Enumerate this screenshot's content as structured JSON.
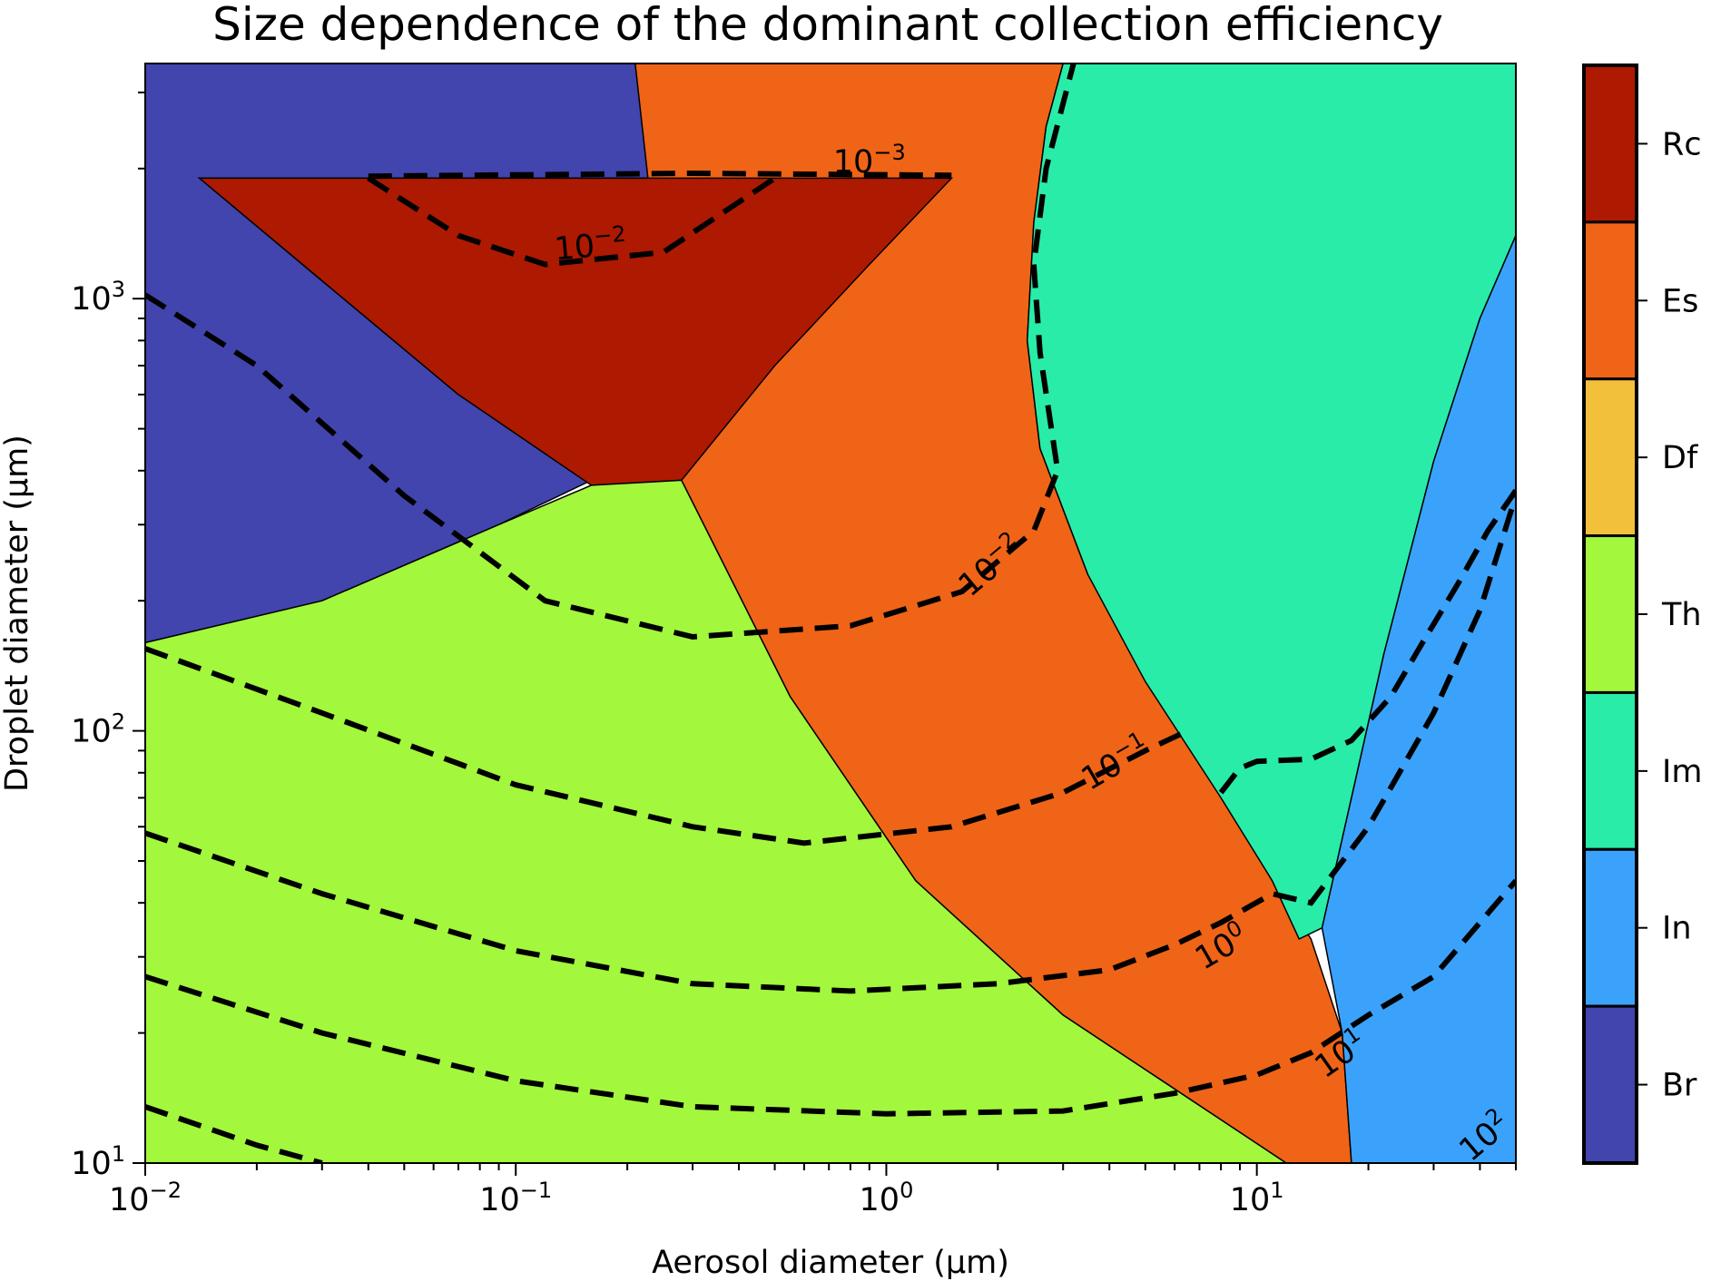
{
  "chart_data": {
    "type": "heatmap",
    "title": "Size dependence of the dominant collection efficiency",
    "xlabel": "Aerosol diameter (μm)",
    "ylabel": "Droplet diameter (μm)",
    "xscale": "log",
    "yscale": "log",
    "xlim": [
      0.01,
      50
    ],
    "ylim": [
      10,
      3500
    ],
    "x_ticks": [
      {
        "value": 0.01,
        "base": "10",
        "exp": "−2"
      },
      {
        "value": 0.1,
        "base": "10",
        "exp": "−1"
      },
      {
        "value": 1,
        "base": "10",
        "exp": "0"
      },
      {
        "value": 10,
        "base": "10",
        "exp": "1"
      }
    ],
    "y_ticks": [
      {
        "value": 10,
        "base": "10",
        "exp": "1"
      },
      {
        "value": 100,
        "base": "10",
        "exp": "2"
      },
      {
        "value": 1000,
        "base": "10",
        "exp": "3"
      }
    ],
    "grid": false,
    "colorbar": {
      "position": "right",
      "categories": [
        {
          "label": "Rc",
          "color": "#ae1901"
        },
        {
          "label": "Es",
          "color": "#f06417"
        },
        {
          "label": "Df",
          "color": "#f2c03a"
        },
        {
          "label": "Th",
          "color": "#a3f73c"
        },
        {
          "label": "Im",
          "color": "#29eca9"
        },
        {
          "label": "In",
          "color": "#3ba2fc"
        },
        {
          "label": "Br",
          "color": "#4145ad"
        }
      ]
    },
    "regions": [
      {
        "mechanism": "Br",
        "color": "#4145ad",
        "boundary": [
          [
            0.01,
            3500
          ],
          [
            0.21,
            3500
          ],
          [
            0.23,
            2500
          ],
          [
            0.25,
            1900
          ],
          [
            0.014,
            1900
          ],
          [
            0.03,
            1100
          ],
          [
            0.07,
            600
          ],
          [
            0.16,
            380
          ],
          [
            0.09,
            300
          ],
          [
            0.03,
            200
          ],
          [
            0.01,
            160
          ]
        ]
      },
      {
        "mechanism": "Es",
        "color": "#f06417",
        "boundary": [
          [
            0.21,
            3500
          ],
          [
            3.0,
            3500
          ],
          [
            2.7,
            2500
          ],
          [
            2.5,
            1500
          ],
          [
            2.4,
            800
          ],
          [
            2.6,
            450
          ],
          [
            3.5,
            230
          ],
          [
            6,
            120
          ],
          [
            9,
            65
          ],
          [
            11,
            45
          ],
          [
            14,
            33
          ],
          [
            17,
            20
          ],
          [
            18,
            10
          ],
          [
            12,
            10
          ],
          [
            3,
            22
          ],
          [
            1.2,
            45
          ],
          [
            0.55,
            120
          ],
          [
            0.28,
            380
          ]
        ]
      },
      {
        "mechanism": "Rc",
        "color": "#ae1901",
        "boundary": [
          [
            0.014,
            1900
          ],
          [
            1.5,
            1900
          ],
          [
            0.9,
            1200
          ],
          [
            0.5,
            700
          ],
          [
            0.28,
            380
          ],
          [
            0.16,
            370
          ],
          [
            0.07,
            600
          ],
          [
            0.03,
            1100
          ]
        ]
      },
      {
        "mechanism": "Th",
        "color": "#a3f73c",
        "boundary": [
          [
            0.01,
            160
          ],
          [
            0.03,
            200
          ],
          [
            0.09,
            300
          ],
          [
            0.16,
            370
          ],
          [
            0.28,
            380
          ],
          [
            0.55,
            120
          ],
          [
            1.2,
            45
          ],
          [
            3,
            22
          ],
          [
            12,
            10
          ],
          [
            0.01,
            10
          ]
        ]
      },
      {
        "mechanism": "Im",
        "color": "#29eca9",
        "boundary": [
          [
            3.6,
            3500
          ],
          [
            50,
            3500
          ],
          [
            50,
            1400
          ],
          [
            40,
            900
          ],
          [
            30,
            420
          ],
          [
            22,
            150
          ],
          [
            18,
            70
          ],
          [
            15,
            35
          ],
          [
            13,
            33
          ],
          [
            11,
            45
          ],
          [
            8,
            70
          ],
          [
            5,
            130
          ],
          [
            3.5,
            230
          ],
          [
            2.6,
            450
          ],
          [
            2.4,
            800
          ],
          [
            2.5,
            1500
          ],
          [
            2.7,
            2500
          ],
          [
            3.0,
            3500
          ]
        ]
      },
      {
        "mechanism": "In",
        "color": "#3ba2fc",
        "boundary": [
          [
            50,
            1400
          ],
          [
            50,
            10
          ],
          [
            18,
            10
          ],
          [
            17,
            20
          ],
          [
            15,
            35
          ],
          [
            18,
            70
          ],
          [
            22,
            150
          ],
          [
            30,
            420
          ],
          [
            40,
            900
          ]
        ]
      }
    ],
    "contours": [
      {
        "level": "10^-3",
        "label_base": "10",
        "label_exp": "−3",
        "label_at": [
          0.9,
          1960
        ],
        "label_angle": 0,
        "points": [
          [
            0.04,
            1920
          ],
          [
            0.3,
            1950
          ],
          [
            1.5,
            1930
          ]
        ]
      },
      {
        "level": "10^-2",
        "label_base": "10",
        "label_exp": "−2",
        "label_at": [
          0.16,
          1250
        ],
        "label_angle": -5,
        "points": [
          [
            0.04,
            1900
          ],
          [
            0.07,
            1400
          ],
          [
            0.12,
            1200
          ],
          [
            0.25,
            1280
          ],
          [
            0.5,
            1900
          ]
        ]
      },
      {
        "level": "10^-2",
        "label_base": "10",
        "label_exp": "−2",
        "label_at": [
          2.0,
          230
        ],
        "label_angle": -40,
        "points": [
          [
            0.01,
            1020
          ],
          [
            0.02,
            700
          ],
          [
            0.05,
            350
          ],
          [
            0.12,
            200
          ],
          [
            0.3,
            165
          ],
          [
            0.8,
            175
          ],
          [
            1.6,
            210
          ],
          [
            2.5,
            290
          ],
          [
            2.9,
            400
          ],
          [
            2.6,
            750
          ],
          [
            2.5,
            1200
          ],
          [
            2.7,
            2000
          ],
          [
            3.2,
            3500
          ]
        ]
      },
      {
        "level": "10^-1",
        "label_base": "10",
        "label_exp": "−1",
        "label_at": [
          4.3,
          80
        ],
        "label_angle": -30,
        "points": [
          [
            0.01,
            155
          ],
          [
            0.03,
            110
          ],
          [
            0.1,
            75
          ],
          [
            0.3,
            60
          ],
          [
            0.6,
            55
          ],
          [
            1.5,
            60
          ],
          [
            3,
            72
          ],
          [
            5,
            90
          ],
          [
            6.5,
            100
          ]
        ]
      },
      {
        "level": "10^0",
        "label_base": "10",
        "label_exp": "0",
        "label_at": [
          8.3,
          30
        ],
        "label_angle": -30,
        "points": [
          [
            0.01,
            58
          ],
          [
            0.03,
            42
          ],
          [
            0.1,
            31
          ],
          [
            0.3,
            26
          ],
          [
            0.8,
            25
          ],
          [
            2,
            26
          ],
          [
            4,
            28
          ],
          [
            6,
            32
          ],
          [
            8,
            36
          ],
          [
            11,
            42
          ],
          [
            14,
            40
          ],
          [
            20,
            60
          ],
          [
            30,
            110
          ],
          [
            40,
            190
          ],
          [
            50,
            350
          ]
        ]
      },
      {
        "level": "10^1",
        "label_base": "10",
        "label_exp": "1",
        "label_at": [
          17.5,
          17
        ],
        "label_angle": -35,
        "points": [
          [
            0.01,
            27
          ],
          [
            0.03,
            20
          ],
          [
            0.1,
            15.5
          ],
          [
            0.3,
            13.5
          ],
          [
            1,
            13
          ],
          [
            3,
            13.2
          ],
          [
            6,
            14.5
          ],
          [
            10,
            16
          ],
          [
            14,
            18
          ],
          [
            20,
            22
          ],
          [
            30,
            27
          ],
          [
            50,
            45
          ]
        ]
      },
      {
        "level": "10^2",
        "label_base": "10",
        "label_exp": "2",
        "label_at": [
          43,
          11
        ],
        "label_angle": -40,
        "points": [
          [
            0.01,
            13.5
          ],
          [
            0.02,
            11
          ],
          [
            0.03,
            10
          ]
        ]
      }
    ],
    "imp_contour": {
      "points": [
        [
          8,
          72
        ],
        [
          9,
          82
        ],
        [
          10,
          85
        ],
        [
          14,
          86
        ],
        [
          18,
          95
        ],
        [
          23,
          120
        ],
        [
          28,
          160
        ],
        [
          35,
          220
        ],
        [
          42,
          290
        ],
        [
          50,
          360
        ]
      ]
    }
  }
}
